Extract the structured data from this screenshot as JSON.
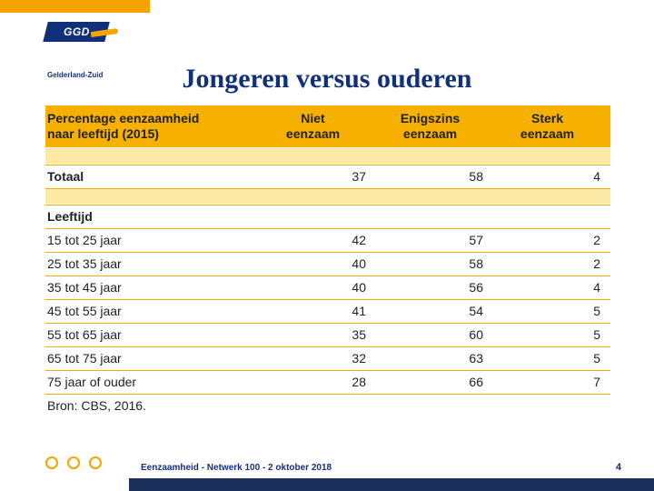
{
  "brand": {
    "mark_text": "GGD",
    "subtext": "Gelderland-Zuid"
  },
  "title": "Jongeren versus ouderen",
  "table": {
    "header": {
      "c1_line1": "Percentage eenzaamheid",
      "c1_line2": "naar leeftijd (2015)",
      "c2_line1": "Niet",
      "c2_line2": "eenzaam",
      "c3_line1": "Enigszins",
      "c3_line2": "eenzaam",
      "c4_line1": "Sterk",
      "c4_line2": "eenzaam"
    },
    "total": {
      "label": "Totaal",
      "v": [
        "37",
        "58",
        "4"
      ]
    },
    "section": {
      "label": "Leeftijd"
    },
    "rows": [
      {
        "label": "15 tot 25 jaar",
        "v": [
          "42",
          "57",
          "2"
        ]
      },
      {
        "label": "25 tot 35 jaar",
        "v": [
          "40",
          "58",
          "2"
        ]
      },
      {
        "label": "35 tot 45 jaar",
        "v": [
          "40",
          "56",
          "4"
        ]
      },
      {
        "label": "45 tot 55 jaar",
        "v": [
          "41",
          "54",
          "5"
        ]
      },
      {
        "label": "55 tot 65 jaar",
        "v": [
          "35",
          "60",
          "5"
        ]
      },
      {
        "label": "65 tot 75 jaar",
        "v": [
          "32",
          "63",
          "5"
        ]
      },
      {
        "label": "75 jaar of ouder",
        "v": [
          "28",
          "66",
          "7"
        ]
      }
    ],
    "source": "Bron: CBS, 2016.",
    "colors": {
      "header_bg": "#f6b100",
      "band_bg": "#fde9a6",
      "rule": "#f6b100",
      "text": "#222222"
    }
  },
  "footer": {
    "text": "Eenzaamheid - Netwerk 100 - 2 oktober 2018",
    "page": "4",
    "accent": "#f5a300",
    "navy": "#1a2f5a"
  }
}
